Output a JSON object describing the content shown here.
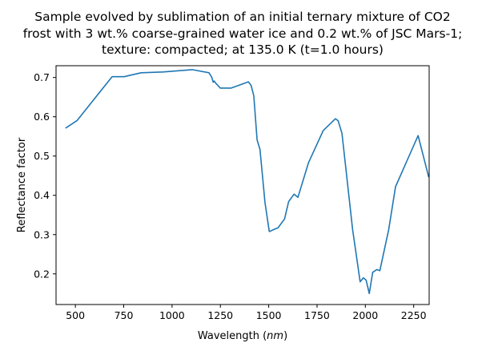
{
  "chart_data": {
    "type": "line",
    "title": [
      "Sample evolved by sublimation of an initial ternary mixture of CO2",
      "frost with 3 wt.% coarse-grained water ice and 0.2 wt.% of JSC Mars-1;",
      "texture: compacted; at 135.0 K (t=1.0 hours)"
    ],
    "xlabel": "Wavelength (nm)",
    "ylabel": "Reflectance factor",
    "xlim": [
      400,
      2330
    ],
    "ylim": [
      0.122,
      0.73
    ],
    "xticks": [
      500,
      750,
      1000,
      1250,
      1500,
      1750,
      2000,
      2250
    ],
    "yticks": [
      0.2,
      0.3,
      0.4,
      0.5,
      0.6,
      0.7
    ],
    "grid": false,
    "color": "#1f77b4",
    "x": [
      449,
      508,
      690,
      752,
      840,
      953,
      1105,
      1191,
      1205,
      1213,
      1218,
      1227,
      1250,
      1306,
      1395,
      1409,
      1423,
      1440,
      1455,
      1481,
      1503,
      1506,
      1531,
      1548,
      1582,
      1603,
      1631,
      1651,
      1706,
      1782,
      1845,
      1859,
      1879,
      1934,
      1973,
      1990,
      2004,
      2020,
      2038,
      2059,
      2075,
      2121,
      2156,
      2273,
      2328
    ],
    "y": [
      0.571,
      0.59,
      0.702,
      0.702,
      0.712,
      0.714,
      0.72,
      0.712,
      0.701,
      0.688,
      0.691,
      0.685,
      0.673,
      0.673,
      0.689,
      0.68,
      0.653,
      0.541,
      0.517,
      0.381,
      0.308,
      0.308,
      0.314,
      0.317,
      0.34,
      0.384,
      0.403,
      0.395,
      0.483,
      0.565,
      0.595,
      0.59,
      0.558,
      0.313,
      0.18,
      0.19,
      0.184,
      0.15,
      0.204,
      0.211,
      0.208,
      0.313,
      0.422,
      0.552,
      0.446
    ]
  }
}
